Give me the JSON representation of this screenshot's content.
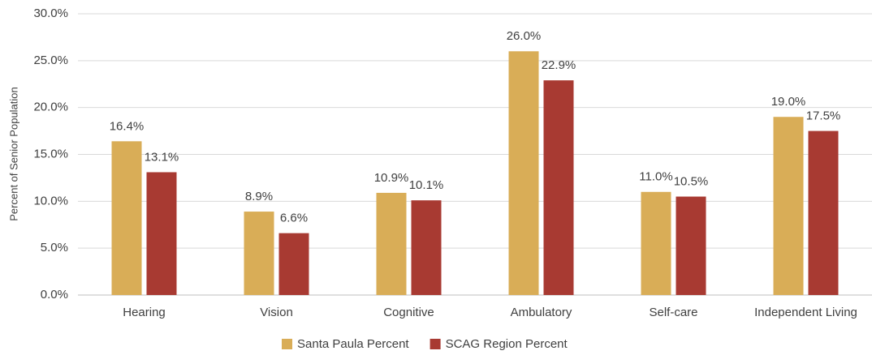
{
  "chart_data": {
    "type": "bar",
    "ylabel": "Percent of Senior Population",
    "categories": [
      "Hearing",
      "Vision",
      "Cognitive",
      "Ambulatory",
      "Self-care",
      "Independent Living"
    ],
    "series": [
      {
        "name": "Santa Paula Percent",
        "color": "#d9ad57",
        "values": [
          16.4,
          8.9,
          10.9,
          26.0,
          11.0,
          19.0
        ],
        "value_labels": [
          "16.4%",
          "8.9%",
          "10.9%",
          "26.0%",
          "11.0%",
          "19.0%"
        ]
      },
      {
        "name": "SCAG Region Percent",
        "color": "#a83a32",
        "values": [
          13.1,
          6.6,
          10.1,
          22.9,
          10.5,
          17.5
        ],
        "value_labels": [
          "13.1%",
          "6.6%",
          "10.1%",
          "22.9%",
          "10.5%",
          "17.5%"
        ]
      }
    ],
    "ylim": [
      0,
      30
    ],
    "yticks": [
      {
        "value": 0,
        "label": "0.0%"
      },
      {
        "value": 5,
        "label": "5.0%"
      },
      {
        "value": 10,
        "label": "10.0%"
      },
      {
        "value": 15,
        "label": "15.0%"
      },
      {
        "value": 20,
        "label": "20.0%"
      },
      {
        "value": 25,
        "label": "25.0%"
      },
      {
        "value": 30,
        "label": "30.0%"
      }
    ],
    "grid": true,
    "legend": "bottom"
  }
}
